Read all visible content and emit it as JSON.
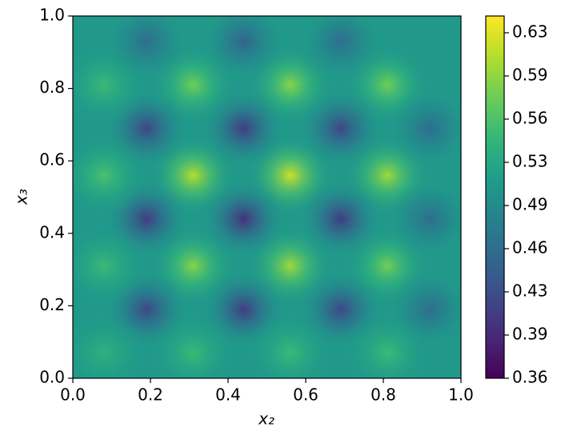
{
  "chart_data": {
    "type": "heatmap",
    "x_label": "x₂",
    "y_label": "x₃",
    "xlim": [
      0,
      1
    ],
    "ylim": [
      0,
      1
    ],
    "xticks": [
      {
        "value": 0,
        "label": "0.0"
      },
      0.2,
      0.4,
      0.6,
      0.8,
      {
        "value": 1,
        "label": "1.0"
      }
    ],
    "yticks": [
      {
        "value": 0,
        "label": "0.0"
      },
      0.2,
      0.4,
      0.6,
      0.8,
      {
        "value": 1,
        "label": "1.0"
      }
    ],
    "colormap": "viridis",
    "clim": [
      0.36,
      0.641
    ],
    "cticks": [
      {
        "value": 0.36,
        "label": "0.36"
      },
      {
        "value": 0.3935,
        "label": "0.39"
      },
      {
        "value": 0.427,
        "label": "0.43"
      },
      {
        "value": 0.4605,
        "label": "0.46"
      },
      {
        "value": 0.494,
        "label": "0.49"
      },
      {
        "value": 0.5275,
        "label": "0.53"
      },
      {
        "value": 0.561,
        "label": "0.56"
      },
      {
        "value": 0.5945,
        "label": "0.59"
      },
      {
        "value": 0.628,
        "label": "0.63"
      }
    ],
    "background": 0.51,
    "spots": {
      "x": [
        0.31,
        0.56,
        0.81,
        0.31,
        0.56,
        0.81,
        0.31,
        0.56,
        0.81,
        0.19,
        0.44,
        0.69,
        0.19,
        0.44,
        0.69,
        0.19,
        0.44,
        0.69,
        0.08,
        0.08,
        0.08,
        0.08,
        0.92,
        0.92,
        0.92,
        0.19,
        0.44,
        0.69,
        0.31,
        0.56,
        0.81
      ],
      "y": [
        0.81,
        0.81,
        0.81,
        0.56,
        0.56,
        0.56,
        0.31,
        0.31,
        0.31,
        0.69,
        0.69,
        0.69,
        0.44,
        0.44,
        0.44,
        0.19,
        0.19,
        0.19,
        0.81,
        0.56,
        0.31,
        0.07,
        0.69,
        0.44,
        0.19,
        0.93,
        0.93,
        0.93,
        0.07,
        0.07,
        0.07
      ],
      "values": [
        0.58,
        0.59,
        0.58,
        0.61,
        0.62,
        0.6,
        0.59,
        0.6,
        0.58,
        0.42,
        0.41,
        0.42,
        0.41,
        0.4,
        0.41,
        0.42,
        0.41,
        0.42,
        0.55,
        0.56,
        0.55,
        0.54,
        0.46,
        0.46,
        0.46,
        0.46,
        0.45,
        0.46,
        0.55,
        0.55,
        0.55
      ]
    }
  }
}
